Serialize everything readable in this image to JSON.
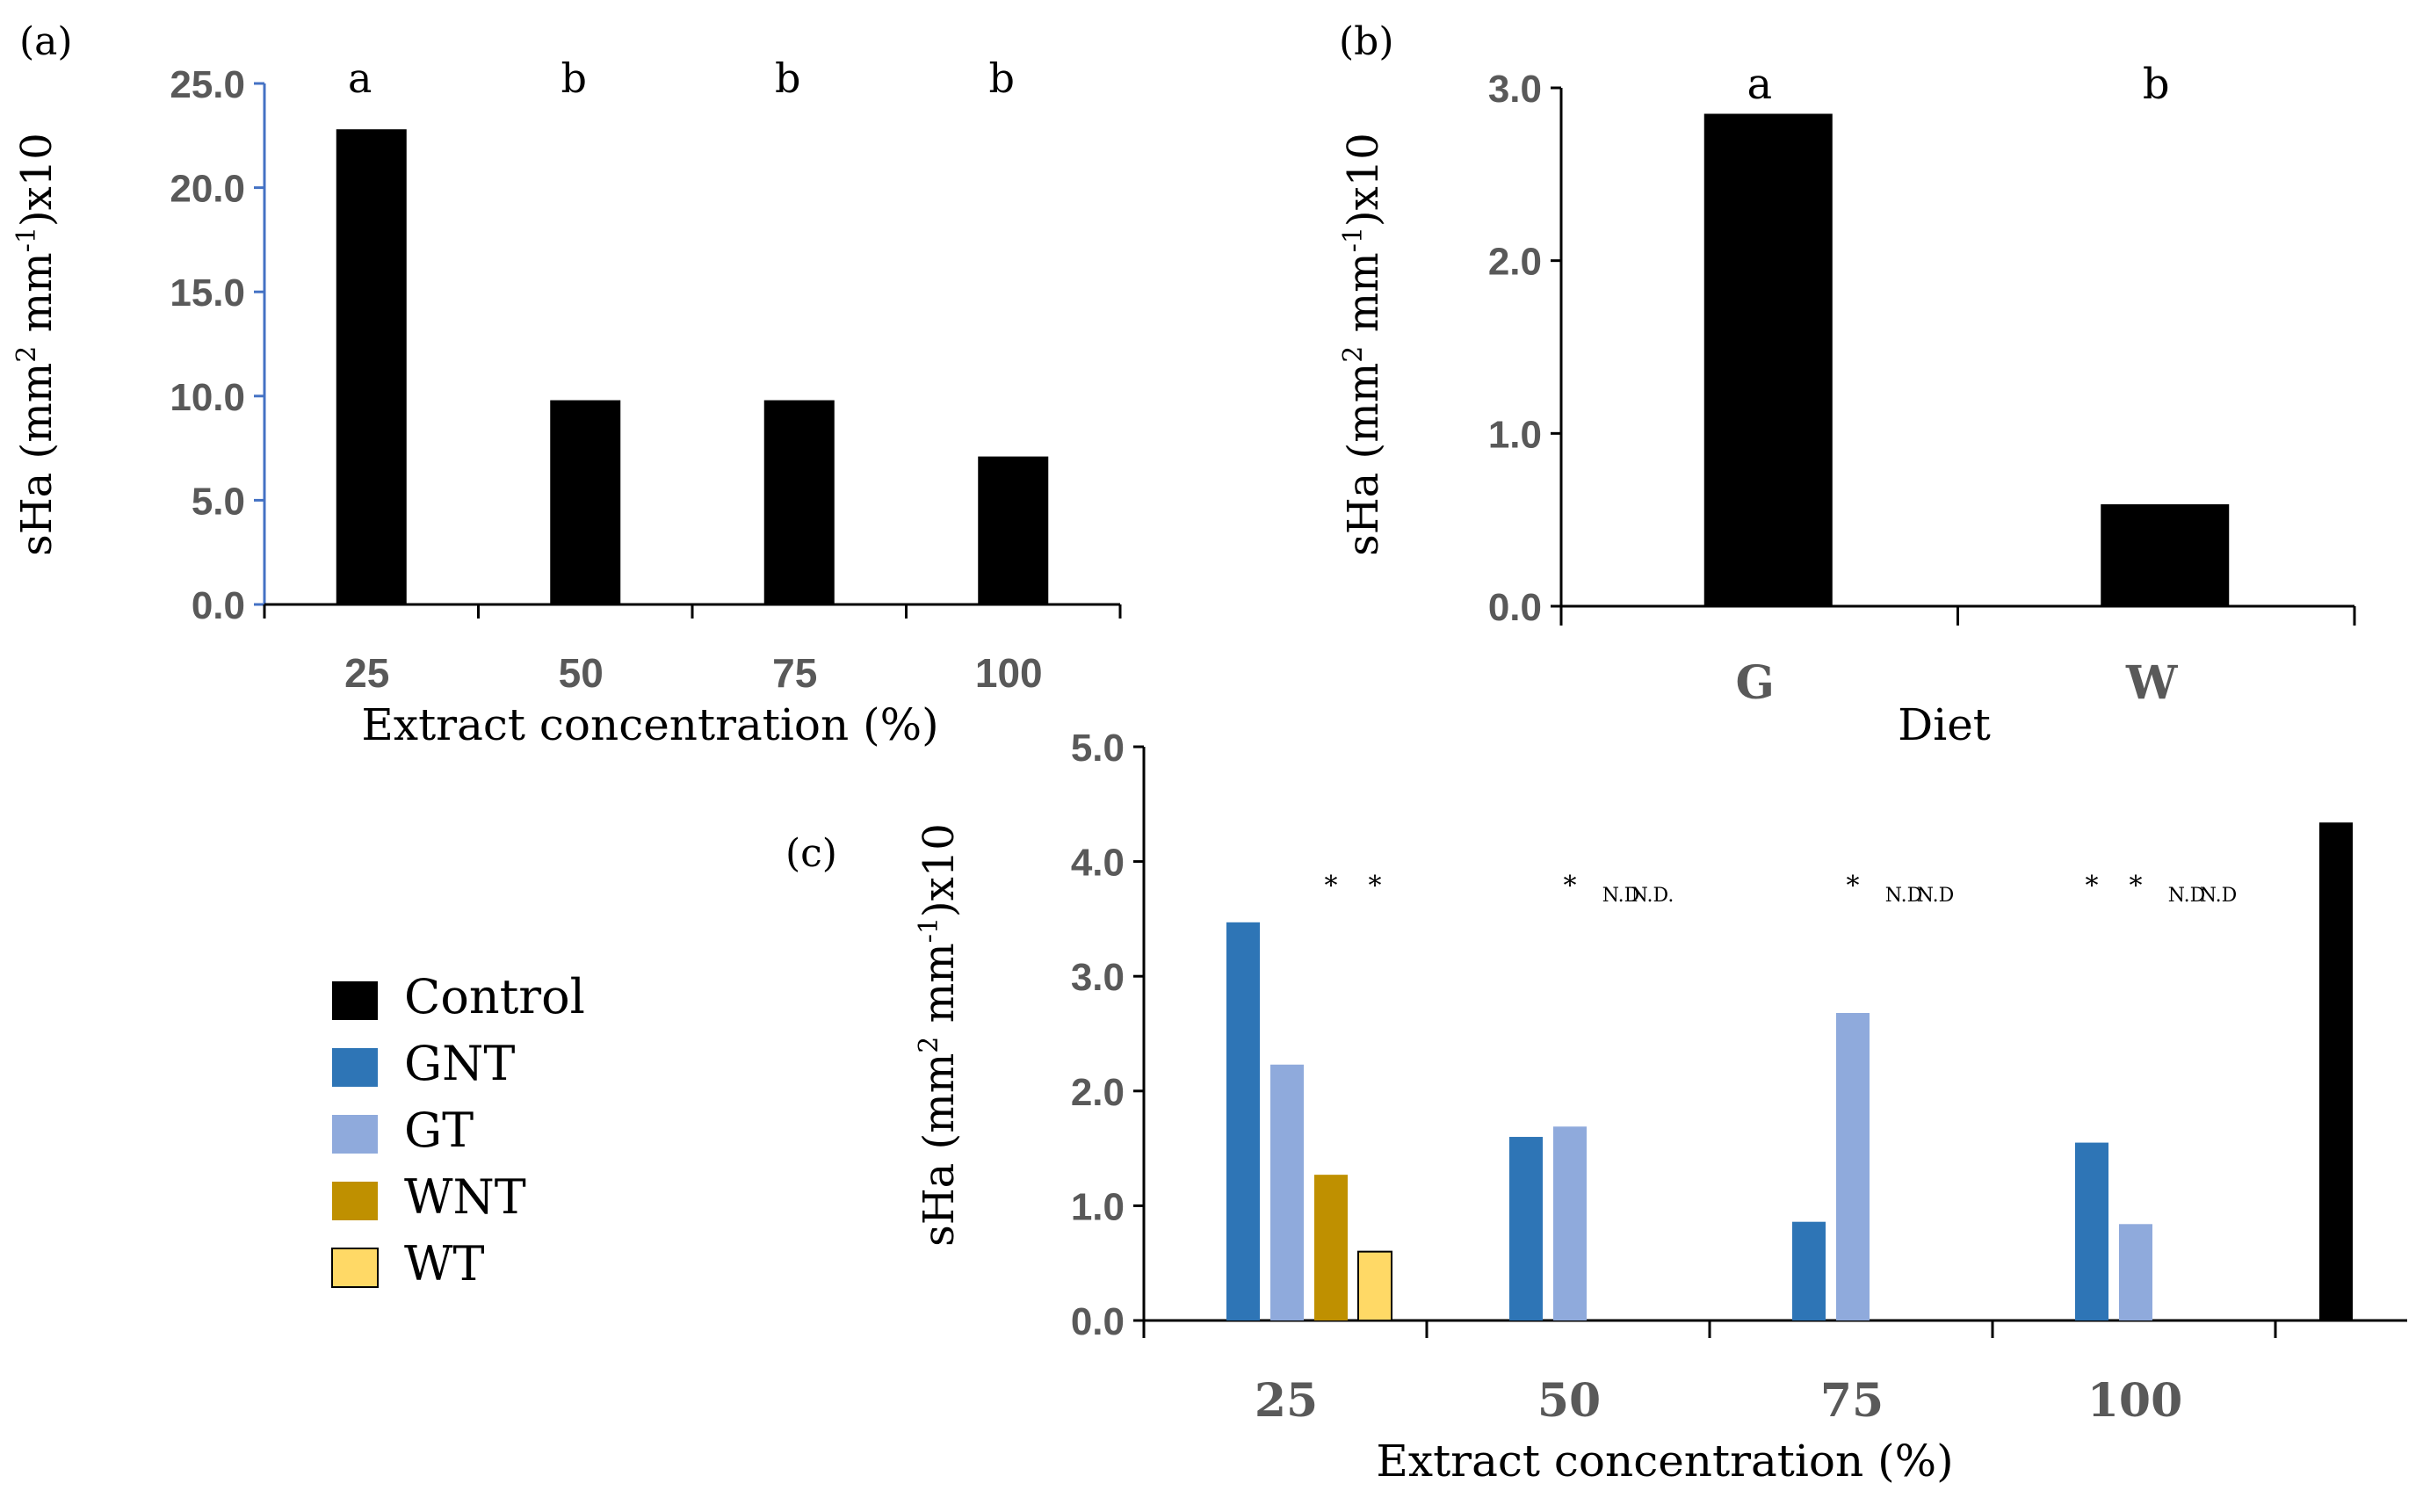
{
  "chart_data": [
    {
      "panel": "(a)",
      "type": "bar",
      "title": "",
      "ylabel": "sHa  (mm2 mm-1)x10",
      "xlabel": "Extract concentration (%)",
      "categories": [
        "25",
        "50",
        "75",
        "100"
      ],
      "values": [
        22.8,
        9.8,
        9.8,
        7.1
      ],
      "letters": [
        "a",
        "b",
        "b",
        "b"
      ],
      "ylim": [
        0,
        25
      ],
      "yticks": [
        0,
        5,
        10,
        15,
        20,
        25
      ],
      "ytick_labels": [
        "0.0",
        "5.0",
        "10.0",
        "15.0",
        "20.0",
        "25.0"
      ],
      "color": "#000000",
      "grid": false
    },
    {
      "panel": "(b)",
      "type": "bar",
      "title": "",
      "ylabel": "sHa  (mm2 mm-1)x10",
      "xlabel": "Diet",
      "categories": [
        "G",
        "W"
      ],
      "values": [
        2.85,
        0.59
      ],
      "letters": [
        "a",
        "b"
      ],
      "ylim": [
        0,
        3
      ],
      "yticks": [
        0,
        1,
        2,
        3
      ],
      "ytick_labels": [
        "0.0",
        "1.0",
        "2.0",
        "3.0"
      ],
      "color": "#000000",
      "grid": false
    },
    {
      "panel": "(c)",
      "type": "bar",
      "title": "",
      "ylabel": "sHa  (mm2 mm-1)x10",
      "xlabel": "Extract concentration (%)",
      "categories": [
        "25",
        "50",
        "75",
        "100"
      ],
      "series": [
        {
          "name": "GNT",
          "color": "#2e75b6",
          "values": [
            3.47,
            1.6,
            0.86,
            1.55
          ]
        },
        {
          "name": "GT",
          "color": "#8faadc",
          "values": [
            2.23,
            1.69,
            2.68,
            0.84
          ]
        },
        {
          "name": "WNT",
          "color": "#bf9000",
          "values": [
            1.27,
            null,
            null,
            null
          ]
        },
        {
          "name": "WT",
          "color": "#ffd966",
          "values": [
            0.6,
            null,
            null,
            null
          ]
        }
      ],
      "control": {
        "name": "Control",
        "color": "#000000",
        "value": 4.34
      },
      "annotations": [
        [
          "",
          "",
          "*",
          "*"
        ],
        [
          "",
          "*",
          "N.D",
          "N.D."
        ],
        [
          "",
          "*",
          "N.D",
          "N.D"
        ],
        [
          "*",
          "*",
          "N.D",
          "N.D"
        ]
      ],
      "legend": [
        "Control",
        "GNT",
        "GT",
        "WNT",
        "WT"
      ],
      "legend_colors": [
        "#000000",
        "#2e75b6",
        "#8faadc",
        "#bf9000",
        "#ffd966"
      ],
      "legend_position": "left",
      "ylim": [
        0,
        5
      ],
      "yticks": [
        0,
        1,
        2,
        3,
        4,
        5
      ],
      "ytick_labels": [
        "0.0",
        "1.0",
        "2.0",
        "3.0",
        "4.0",
        "5.0"
      ],
      "grid": false
    }
  ]
}
